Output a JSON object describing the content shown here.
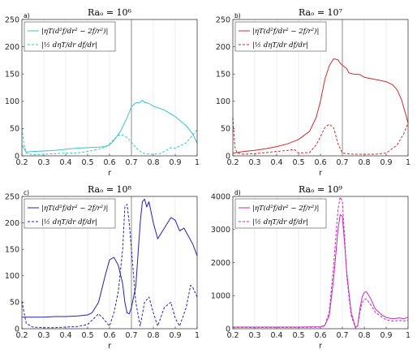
{
  "chart_data": [
    {
      "type": "line",
      "panel_label": "a)",
      "title": "Raₒ = 10⁶",
      "xlabel": "r",
      "xlim": [
        0.2,
        1.0
      ],
      "ylim": [
        0,
        250
      ],
      "xticks": [
        "0.2",
        "0.3",
        "0.4",
        "0.5",
        "0.6",
        "0.7",
        "0.8",
        "0.9",
        "1"
      ],
      "yticks": [
        "0",
        "50",
        "100",
        "150",
        "200",
        "250"
      ],
      "vline_x": 0.7,
      "grid": "vertical",
      "legend_position": "top-left",
      "color": "#3cc4c4",
      "series": [
        {
          "name": "|ηT(d²f/dr² − 2f/r²)|",
          "style": "solid",
          "x": [
            0.2,
            0.22,
            0.25,
            0.3,
            0.35,
            0.4,
            0.45,
            0.5,
            0.55,
            0.58,
            0.6,
            0.62,
            0.65,
            0.68,
            0.7,
            0.72,
            0.74,
            0.75,
            0.76,
            0.78,
            0.8,
            0.85,
            0.9,
            0.95,
            0.98,
            1.0
          ],
          "y": [
            20,
            7,
            8,
            9,
            10,
            12,
            14,
            15,
            16,
            17,
            20,
            28,
            45,
            70,
            90,
            97,
            98,
            102,
            98,
            96,
            91,
            84,
            72,
            55,
            40,
            23
          ]
        },
        {
          "name": "|½ dηT/dr df/dr|",
          "style": "dashed",
          "x": [
            0.2,
            0.21,
            0.22,
            0.25,
            0.3,
            0.35,
            0.4,
            0.45,
            0.5,
            0.55,
            0.58,
            0.6,
            0.62,
            0.64,
            0.66,
            0.68,
            0.7,
            0.72,
            0.75,
            0.78,
            0.8,
            0.83,
            0.85,
            0.88,
            0.9,
            0.95,
            1.0
          ],
          "y": [
            50,
            20,
            5,
            2,
            3,
            4,
            5,
            5,
            8,
            12,
            16,
            22,
            30,
            38,
            38,
            34,
            25,
            15,
            5,
            3,
            3,
            4,
            8,
            15,
            14,
            24,
            48
          ]
        }
      ]
    },
    {
      "type": "line",
      "panel_label": "b)",
      "title": "Raₒ = 10⁷",
      "xlabel": "r",
      "xlim": [
        0.2,
        1.0
      ],
      "ylim": [
        0,
        250
      ],
      "xticks": [
        "0.2",
        "0.3",
        "0.4",
        "0.5",
        "0.6",
        "0.7",
        "0.8",
        "0.9",
        "1"
      ],
      "yticks": [
        "0",
        "50",
        "100",
        "150",
        "200",
        "250"
      ],
      "vline_x": 0.7,
      "grid": "vertical",
      "legend_position": "top-left",
      "color": "#d42a2a",
      "series": [
        {
          "name": "|ηT(d²f/dr² − 2f/r²)|",
          "style": "solid",
          "x": [
            0.2,
            0.25,
            0.3,
            0.35,
            0.4,
            0.45,
            0.5,
            0.55,
            0.58,
            0.6,
            0.62,
            0.64,
            0.66,
            0.68,
            0.69,
            0.7,
            0.72,
            0.73,
            0.75,
            0.78,
            0.8,
            0.85,
            0.9,
            0.93,
            0.95,
            0.97,
            0.99,
            1.0
          ],
          "y": [
            5,
            8,
            10,
            13,
            17,
            22,
            30,
            45,
            70,
            100,
            140,
            165,
            178,
            176,
            170,
            166,
            160,
            152,
            150,
            149,
            144,
            140,
            136,
            130,
            121,
            103,
            75,
            60
          ]
        },
        {
          "name": "|½ dηT/dr df/dr|",
          "style": "dashed",
          "x": [
            0.2,
            0.205,
            0.21,
            0.22,
            0.25,
            0.3,
            0.35,
            0.4,
            0.45,
            0.48,
            0.5,
            0.55,
            0.58,
            0.6,
            0.62,
            0.64,
            0.66,
            0.68,
            0.7,
            0.72,
            0.75,
            0.8,
            0.85,
            0.9,
            0.95,
            0.98,
            1.0
          ],
          "y": [
            70,
            40,
            15,
            5,
            3,
            4,
            6,
            8,
            10,
            12,
            5,
            6,
            20,
            35,
            52,
            58,
            52,
            22,
            5,
            4,
            3,
            3,
            3,
            5,
            20,
            40,
            60
          ]
        }
      ]
    },
    {
      "type": "line",
      "panel_label": "c)",
      "title": "Raₒ = 10⁸",
      "xlabel": "r",
      "xlim": [
        0.2,
        1.0
      ],
      "ylim": [
        0,
        250
      ],
      "xticks": [
        "0.2",
        "0.3",
        "0.4",
        "0.5",
        "0.6",
        "0.7",
        "0.8",
        "0.9",
        "1"
      ],
      "yticks": [
        "0",
        "50",
        "100",
        "150",
        "200",
        "250"
      ],
      "vline_x": 0.7,
      "grid": "vertical",
      "legend_position": "top-left",
      "color": "#2222b8",
      "series": [
        {
          "name": "|ηT(d²f/dr² − 2f/r²)|",
          "style": "solid",
          "x": [
            0.2,
            0.25,
            0.3,
            0.35,
            0.4,
            0.45,
            0.5,
            0.52,
            0.55,
            0.58,
            0.6,
            0.62,
            0.64,
            0.66,
            0.67,
            0.68,
            0.69,
            0.7,
            0.72,
            0.74,
            0.75,
            0.76,
            0.77,
            0.78,
            0.8,
            0.82,
            0.85,
            0.88,
            0.9,
            0.92,
            0.94,
            0.96,
            0.98,
            1.0
          ],
          "y": [
            22,
            22,
            22,
            23,
            23,
            24,
            26,
            30,
            50,
            100,
            130,
            135,
            120,
            85,
            50,
            30,
            28,
            40,
            80,
            200,
            240,
            245,
            230,
            240,
            200,
            170,
            190,
            210,
            205,
            185,
            190,
            175,
            160,
            138
          ]
        },
        {
          "name": "|½ dηT/dr df/dr|",
          "style": "dashed",
          "x": [
            0.2,
            0.21,
            0.22,
            0.25,
            0.3,
            0.35,
            0.4,
            0.45,
            0.5,
            0.53,
            0.55,
            0.57,
            0.6,
            0.62,
            0.64,
            0.66,
            0.67,
            0.68,
            0.69,
            0.7,
            0.72,
            0.74,
            0.76,
            0.78,
            0.8,
            0.82,
            0.85,
            0.88,
            0.9,
            0.92,
            0.95,
            0.97,
            0.98,
            1.0
          ],
          "y": [
            52,
            30,
            10,
            3,
            2,
            2,
            3,
            4,
            8,
            20,
            28,
            20,
            5,
            30,
            70,
            150,
            230,
            235,
            200,
            150,
            50,
            5,
            50,
            60,
            30,
            5,
            40,
            50,
            20,
            5,
            40,
            82,
            78,
            60
          ]
        }
      ]
    },
    {
      "type": "line",
      "panel_label": "d)",
      "title": "Raₒ = 10⁹",
      "xlabel": "r",
      "xlim": [
        0.2,
        1.0
      ],
      "ylim": [
        0,
        4000
      ],
      "xticks": [
        "0.2",
        "0.3",
        "0.4",
        "0.5",
        "0.6",
        "0.7",
        "0.8",
        "0.9",
        "1"
      ],
      "yticks": [
        "0",
        "1000",
        "2000",
        "3000",
        "4000"
      ],
      "vline_x": null,
      "grid": "vertical",
      "legend_position": "top-left",
      "color": "#c42ac4",
      "series": [
        {
          "name": "|ηT(d²f/dr² − 2f/r²)|",
          "style": "solid",
          "x": [
            0.2,
            0.3,
            0.4,
            0.5,
            0.6,
            0.62,
            0.64,
            0.66,
            0.68,
            0.69,
            0.7,
            0.71,
            0.72,
            0.74,
            0.76,
            0.77,
            0.78,
            0.79,
            0.8,
            0.81,
            0.83,
            0.85,
            0.88,
            0.9,
            0.93,
            0.96,
            0.98,
            1.0
          ],
          "y": [
            50,
            50,
            50,
            50,
            60,
            100,
            400,
            1500,
            3000,
            3450,
            3400,
            2600,
            1700,
            500,
            30,
            100,
            600,
            950,
            1100,
            1120,
            900,
            600,
            420,
            340,
            300,
            330,
            300,
            350
          ]
        },
        {
          "name": "|½ dηT/dr df/dr|",
          "style": "dashed",
          "x": [
            0.2,
            0.3,
            0.4,
            0.5,
            0.6,
            0.62,
            0.64,
            0.66,
            0.68,
            0.69,
            0.7,
            0.71,
            0.72,
            0.74,
            0.76,
            0.77,
            0.78,
            0.79,
            0.8,
            0.81,
            0.83,
            0.85,
            0.88,
            0.9,
            0.93,
            0.96,
            0.98,
            1.0
          ],
          "y": [
            40,
            40,
            40,
            40,
            50,
            90,
            500,
            1900,
            3600,
            3980,
            3850,
            2800,
            1600,
            400,
            20,
            80,
            500,
            780,
            880,
            900,
            720,
            500,
            350,
            270,
            230,
            250,
            230,
            260
          ]
        }
      ]
    }
  ]
}
